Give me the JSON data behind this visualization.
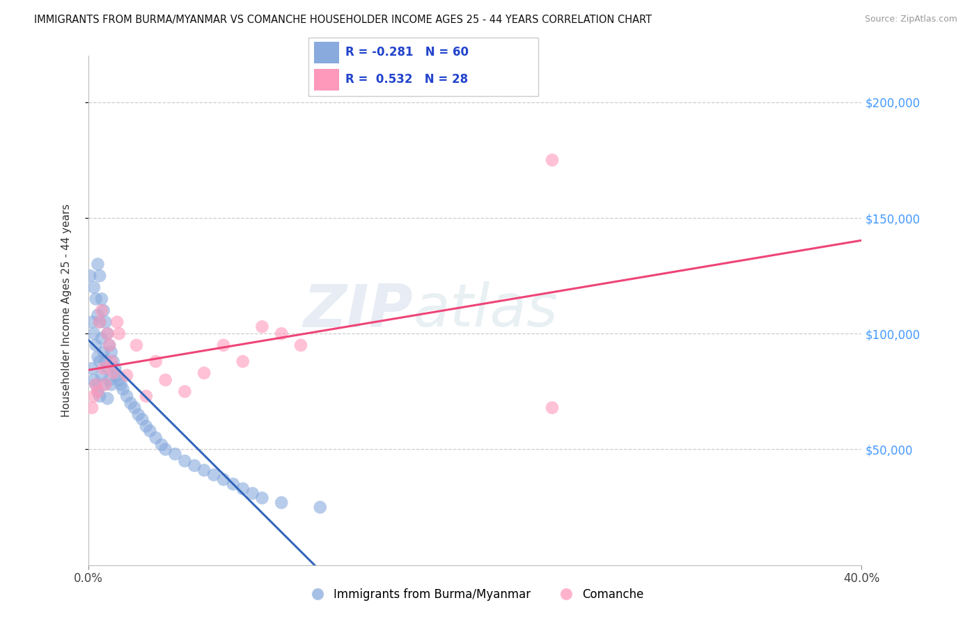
{
  "title": "IMMIGRANTS FROM BURMA/MYANMAR VS COMANCHE HOUSEHOLDER INCOME AGES 25 - 44 YEARS CORRELATION CHART",
  "source": "Source: ZipAtlas.com",
  "ylabel": "Householder Income Ages 25 - 44 years",
  "xlim": [
    0.0,
    0.4
  ],
  "ylim": [
    0,
    220000
  ],
  "ytick_labels_right": [
    "$200,000",
    "$150,000",
    "$100,000",
    "$50,000"
  ],
  "ytick_values_right": [
    200000,
    150000,
    100000,
    50000
  ],
  "legend_label1": "Immigrants from Burma/Myanmar",
  "legend_label2": "Comanche",
  "legend_r1": "-0.281",
  "legend_n1": "60",
  "legend_r2": "0.532",
  "legend_n2": "28",
  "color_blue": "#88AADD",
  "color_pink": "#FF99BB",
  "color_line_blue": "#3366BB",
  "color_line_pink": "#EE4477",
  "watermark_zip": "ZIP",
  "watermark_atlas": "atlas",
  "blue_x": [
    0.001,
    0.002,
    0.002,
    0.003,
    0.003,
    0.003,
    0.004,
    0.004,
    0.004,
    0.005,
    0.005,
    0.005,
    0.005,
    0.006,
    0.006,
    0.006,
    0.006,
    0.007,
    0.007,
    0.007,
    0.008,
    0.008,
    0.008,
    0.009,
    0.009,
    0.01,
    0.01,
    0.01,
    0.011,
    0.011,
    0.012,
    0.012,
    0.013,
    0.014,
    0.015,
    0.016,
    0.017,
    0.018,
    0.02,
    0.022,
    0.024,
    0.026,
    0.028,
    0.03,
    0.032,
    0.035,
    0.038,
    0.04,
    0.045,
    0.05,
    0.055,
    0.06,
    0.065,
    0.07,
    0.075,
    0.08,
    0.085,
    0.09,
    0.1,
    0.12
  ],
  "blue_y": [
    125000,
    105000,
    85000,
    120000,
    100000,
    80000,
    115000,
    95000,
    78000,
    130000,
    108000,
    90000,
    75000,
    125000,
    105000,
    88000,
    73000,
    115000,
    98000,
    82000,
    110000,
    92000,
    78000,
    105000,
    88000,
    100000,
    85000,
    72000,
    95000,
    80000,
    92000,
    78000,
    88000,
    85000,
    82000,
    80000,
    78000,
    76000,
    73000,
    70000,
    68000,
    65000,
    63000,
    60000,
    58000,
    55000,
    52000,
    50000,
    48000,
    45000,
    43000,
    41000,
    39000,
    37000,
    35000,
    33000,
    31000,
    29000,
    27000,
    25000
  ],
  "pink_x": [
    0.002,
    0.003,
    0.004,
    0.005,
    0.006,
    0.007,
    0.008,
    0.009,
    0.01,
    0.011,
    0.012,
    0.013,
    0.015,
    0.016,
    0.02,
    0.025,
    0.03,
    0.035,
    0.04,
    0.05,
    0.06,
    0.07,
    0.08,
    0.09,
    0.1,
    0.11,
    0.24,
    0.24
  ],
  "pink_y": [
    68000,
    73000,
    78000,
    75000,
    105000,
    110000,
    85000,
    78000,
    100000,
    95000,
    88000,
    83000,
    105000,
    100000,
    82000,
    95000,
    73000,
    88000,
    80000,
    75000,
    83000,
    95000,
    88000,
    103000,
    100000,
    95000,
    175000,
    68000
  ]
}
